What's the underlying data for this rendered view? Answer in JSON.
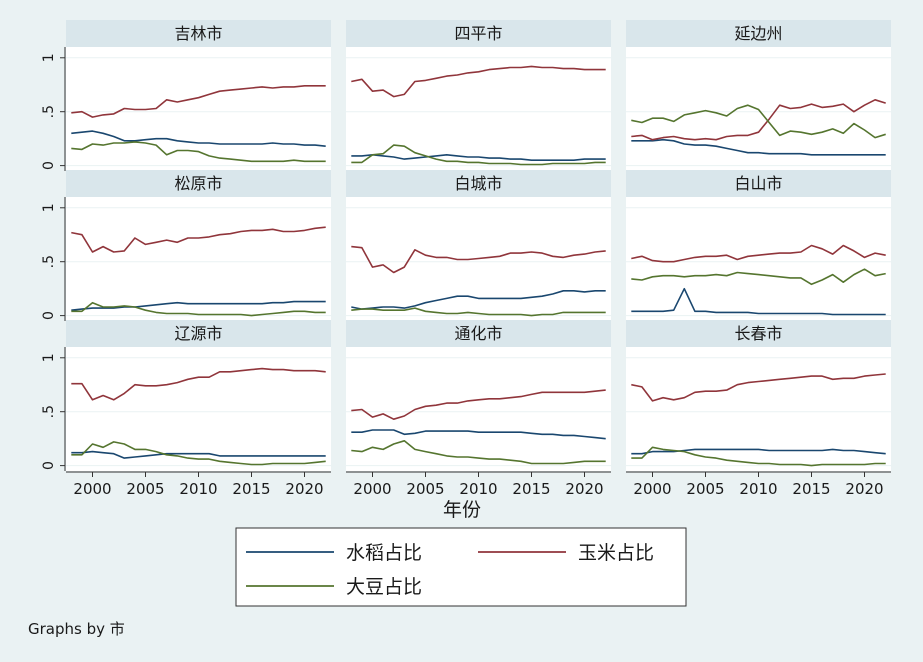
{
  "chart_data": {
    "type": "line",
    "x_label": "年份",
    "x_ticks": [
      2000,
      2005,
      2010,
      2015,
      2020
    ],
    "xlim": [
      1997.5,
      2022.5
    ],
    "y_ticks": [
      0,
      0.5,
      1
    ],
    "y_tick_labels": [
      "0",
      ".5",
      "1"
    ],
    "ylim": [
      -0.05,
      1.1
    ],
    "x": [
      1998,
      1999,
      2000,
      2001,
      2002,
      2003,
      2004,
      2005,
      2006,
      2007,
      2008,
      2009,
      2010,
      2011,
      2012,
      2013,
      2014,
      2015,
      2016,
      2017,
      2018,
      2019,
      2020,
      2021,
      2022
    ],
    "legend": {
      "position": "bottom",
      "items": [
        {
          "name": "水稻占比",
          "color": "#1a476f"
        },
        {
          "name": "玉米占比",
          "color": "#90353b"
        },
        {
          "name": "大豆占比",
          "color": "#55752f"
        }
      ]
    },
    "note": "Graphs by 市",
    "panels": [
      {
        "title": "吉林市",
        "series": {
          "rice": [
            0.3,
            0.31,
            0.32,
            0.3,
            0.27,
            0.23,
            0.23,
            0.24,
            0.25,
            0.25,
            0.23,
            0.22,
            0.21,
            0.21,
            0.2,
            0.2,
            0.2,
            0.2,
            0.2,
            0.21,
            0.2,
            0.2,
            0.19,
            0.19,
            0.18
          ],
          "corn": [
            0.49,
            0.5,
            0.45,
            0.47,
            0.48,
            0.53,
            0.52,
            0.52,
            0.53,
            0.61,
            0.59,
            0.61,
            0.63,
            0.66,
            0.69,
            0.7,
            0.71,
            0.72,
            0.73,
            0.72,
            0.73,
            0.73,
            0.74,
            0.74,
            0.74
          ],
          "soybean": [
            0.16,
            0.15,
            0.2,
            0.19,
            0.21,
            0.21,
            0.22,
            0.21,
            0.19,
            0.1,
            0.14,
            0.14,
            0.13,
            0.09,
            0.07,
            0.06,
            0.05,
            0.04,
            0.04,
            0.04,
            0.04,
            0.05,
            0.04,
            0.04,
            0.04
          ]
        }
      },
      {
        "title": "四平市",
        "series": {
          "rice": [
            0.09,
            0.09,
            0.1,
            0.09,
            0.08,
            0.06,
            0.07,
            0.08,
            0.09,
            0.1,
            0.09,
            0.08,
            0.08,
            0.07,
            0.07,
            0.06,
            0.06,
            0.05,
            0.05,
            0.05,
            0.05,
            0.05,
            0.06,
            0.06,
            0.06
          ],
          "corn": [
            0.78,
            0.8,
            0.69,
            0.7,
            0.64,
            0.66,
            0.78,
            0.79,
            0.81,
            0.83,
            0.84,
            0.86,
            0.87,
            0.89,
            0.9,
            0.91,
            0.91,
            0.92,
            0.91,
            0.91,
            0.9,
            0.9,
            0.89,
            0.89,
            0.89
          ],
          "soybean": [
            0.03,
            0.03,
            0.1,
            0.11,
            0.19,
            0.18,
            0.12,
            0.09,
            0.06,
            0.04,
            0.04,
            0.03,
            0.03,
            0.02,
            0.02,
            0.02,
            0.01,
            0.01,
            0.01,
            0.02,
            0.02,
            0.02,
            0.02,
            0.03,
            0.03
          ]
        }
      },
      {
        "title": "延边州",
        "series": {
          "rice": [
            0.23,
            0.23,
            0.23,
            0.24,
            0.23,
            0.2,
            0.19,
            0.19,
            0.18,
            0.16,
            0.14,
            0.12,
            0.12,
            0.11,
            0.11,
            0.11,
            0.11,
            0.1,
            0.1,
            0.1,
            0.1,
            0.1,
            0.1,
            0.1,
            0.1
          ],
          "corn": [
            0.27,
            0.28,
            0.24,
            0.26,
            0.27,
            0.25,
            0.24,
            0.25,
            0.24,
            0.27,
            0.28,
            0.28,
            0.31,
            0.43,
            0.56,
            0.53,
            0.54,
            0.57,
            0.54,
            0.55,
            0.57,
            0.5,
            0.56,
            0.61,
            0.58
          ],
          "soybean": [
            0.42,
            0.4,
            0.44,
            0.44,
            0.41,
            0.47,
            0.49,
            0.51,
            0.49,
            0.46,
            0.53,
            0.56,
            0.52,
            0.4,
            0.28,
            0.32,
            0.31,
            0.29,
            0.31,
            0.34,
            0.3,
            0.39,
            0.33,
            0.26,
            0.29
          ]
        }
      },
      {
        "title": "松原市",
        "series": {
          "rice": [
            0.05,
            0.06,
            0.07,
            0.07,
            0.07,
            0.08,
            0.08,
            0.09,
            0.1,
            0.11,
            0.12,
            0.11,
            0.11,
            0.11,
            0.11,
            0.11,
            0.11,
            0.11,
            0.11,
            0.12,
            0.12,
            0.13,
            0.13,
            0.13,
            0.13
          ],
          "corn": [
            0.77,
            0.75,
            0.59,
            0.64,
            0.59,
            0.6,
            0.72,
            0.66,
            0.68,
            0.7,
            0.68,
            0.72,
            0.72,
            0.73,
            0.75,
            0.76,
            0.78,
            0.79,
            0.79,
            0.8,
            0.78,
            0.78,
            0.79,
            0.81,
            0.82
          ],
          "soybean": [
            0.04,
            0.04,
            0.12,
            0.08,
            0.08,
            0.09,
            0.08,
            0.05,
            0.03,
            0.02,
            0.02,
            0.02,
            0.01,
            0.01,
            0.01,
            0.01,
            0.01,
            0.0,
            0.01,
            0.02,
            0.03,
            0.04,
            0.04,
            0.03,
            0.03
          ]
        }
      },
      {
        "title": "白城市",
        "series": {
          "rice": [
            0.08,
            0.06,
            0.07,
            0.08,
            0.08,
            0.07,
            0.09,
            0.12,
            0.14,
            0.16,
            0.18,
            0.18,
            0.16,
            0.16,
            0.16,
            0.16,
            0.16,
            0.17,
            0.18,
            0.2,
            0.23,
            0.23,
            0.22,
            0.23,
            0.23
          ],
          "corn": [
            0.64,
            0.63,
            0.45,
            0.47,
            0.4,
            0.45,
            0.61,
            0.56,
            0.54,
            0.54,
            0.52,
            0.52,
            0.53,
            0.54,
            0.55,
            0.58,
            0.58,
            0.59,
            0.58,
            0.55,
            0.54,
            0.56,
            0.57,
            0.59,
            0.6
          ],
          "soybean": [
            0.05,
            0.06,
            0.06,
            0.05,
            0.05,
            0.05,
            0.07,
            0.04,
            0.03,
            0.02,
            0.02,
            0.03,
            0.02,
            0.01,
            0.01,
            0.01,
            0.01,
            0.0,
            0.01,
            0.01,
            0.03,
            0.03,
            0.03,
            0.03,
            0.03
          ]
        }
      },
      {
        "title": "白山市",
        "series": {
          "rice": [
            0.04,
            0.04,
            0.04,
            0.04,
            0.05,
            0.25,
            0.04,
            0.04,
            0.03,
            0.03,
            0.03,
            0.03,
            0.02,
            0.02,
            0.02,
            0.02,
            0.02,
            0.02,
            0.02,
            0.01,
            0.01,
            0.01,
            0.01,
            0.01,
            0.01
          ],
          "corn": [
            0.53,
            0.55,
            0.51,
            0.5,
            0.5,
            0.52,
            0.54,
            0.55,
            0.55,
            0.56,
            0.52,
            0.55,
            0.56,
            0.57,
            0.58,
            0.58,
            0.59,
            0.65,
            0.62,
            0.57,
            0.65,
            0.6,
            0.54,
            0.58,
            0.56
          ],
          "soybean": [
            0.34,
            0.33,
            0.36,
            0.37,
            0.37,
            0.36,
            0.37,
            0.37,
            0.38,
            0.37,
            0.4,
            0.39,
            0.38,
            0.37,
            0.36,
            0.35,
            0.35,
            0.29,
            0.33,
            0.38,
            0.31,
            0.38,
            0.43,
            0.37,
            0.39
          ]
        }
      },
      {
        "title": "辽源市",
        "series": {
          "rice": [
            0.12,
            0.12,
            0.13,
            0.12,
            0.11,
            0.07,
            0.08,
            0.09,
            0.1,
            0.11,
            0.11,
            0.11,
            0.11,
            0.11,
            0.09,
            0.09,
            0.09,
            0.09,
            0.09,
            0.09,
            0.09,
            0.09,
            0.09,
            0.09,
            0.09
          ],
          "corn": [
            0.76,
            0.76,
            0.61,
            0.65,
            0.61,
            0.67,
            0.75,
            0.74,
            0.74,
            0.75,
            0.77,
            0.8,
            0.82,
            0.82,
            0.87,
            0.87,
            0.88,
            0.89,
            0.9,
            0.89,
            0.89,
            0.88,
            0.88,
            0.88,
            0.87
          ],
          "soybean": [
            0.1,
            0.1,
            0.2,
            0.17,
            0.22,
            0.2,
            0.15,
            0.15,
            0.13,
            0.1,
            0.09,
            0.07,
            0.06,
            0.06,
            0.04,
            0.03,
            0.02,
            0.01,
            0.01,
            0.02,
            0.02,
            0.02,
            0.02,
            0.03,
            0.04
          ]
        }
      },
      {
        "title": "通化市",
        "series": {
          "rice": [
            0.31,
            0.31,
            0.33,
            0.33,
            0.33,
            0.29,
            0.3,
            0.32,
            0.32,
            0.32,
            0.32,
            0.32,
            0.31,
            0.31,
            0.31,
            0.31,
            0.31,
            0.3,
            0.29,
            0.29,
            0.28,
            0.28,
            0.27,
            0.26,
            0.25
          ],
          "corn": [
            0.51,
            0.52,
            0.45,
            0.48,
            0.43,
            0.46,
            0.52,
            0.55,
            0.56,
            0.58,
            0.58,
            0.6,
            0.61,
            0.62,
            0.62,
            0.63,
            0.64,
            0.66,
            0.68,
            0.68,
            0.68,
            0.68,
            0.68,
            0.69,
            0.7
          ],
          "soybean": [
            0.14,
            0.13,
            0.17,
            0.15,
            0.2,
            0.23,
            0.15,
            0.13,
            0.11,
            0.09,
            0.08,
            0.08,
            0.07,
            0.06,
            0.06,
            0.05,
            0.04,
            0.02,
            0.02,
            0.02,
            0.02,
            0.03,
            0.04,
            0.04,
            0.04
          ]
        }
      },
      {
        "title": "长春市",
        "series": {
          "rice": [
            0.11,
            0.11,
            0.13,
            0.13,
            0.13,
            0.14,
            0.15,
            0.15,
            0.15,
            0.15,
            0.15,
            0.15,
            0.15,
            0.14,
            0.14,
            0.14,
            0.14,
            0.14,
            0.14,
            0.15,
            0.14,
            0.14,
            0.13,
            0.12,
            0.11
          ],
          "corn": [
            0.75,
            0.73,
            0.6,
            0.63,
            0.61,
            0.63,
            0.68,
            0.69,
            0.69,
            0.7,
            0.75,
            0.77,
            0.78,
            0.79,
            0.8,
            0.81,
            0.82,
            0.83,
            0.83,
            0.8,
            0.81,
            0.81,
            0.83,
            0.84,
            0.85
          ],
          "soybean": [
            0.07,
            0.07,
            0.17,
            0.15,
            0.14,
            0.13,
            0.1,
            0.08,
            0.07,
            0.05,
            0.04,
            0.03,
            0.02,
            0.02,
            0.01,
            0.01,
            0.01,
            0.0,
            0.01,
            0.01,
            0.01,
            0.01,
            0.01,
            0.02,
            0.02
          ]
        }
      }
    ]
  }
}
